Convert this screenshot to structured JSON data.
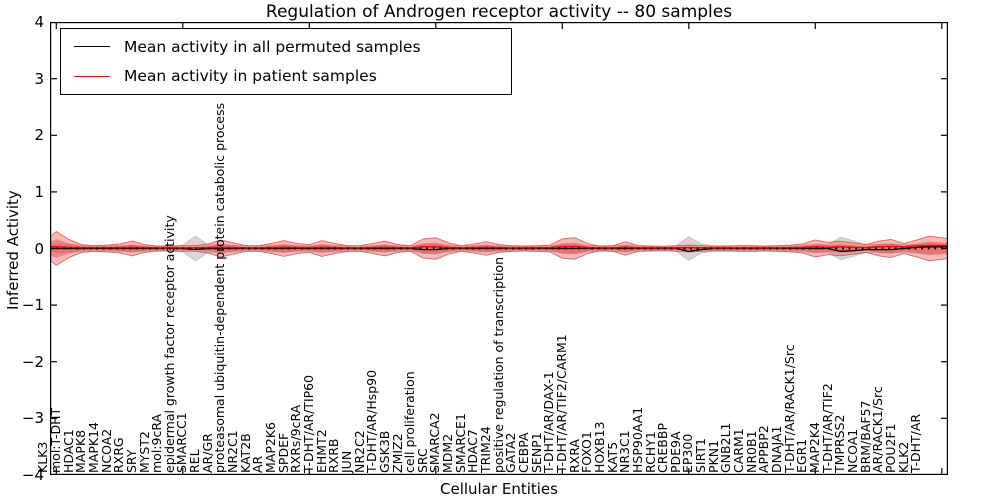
{
  "title": "Regulation of Androgen receptor activity -- 80 samples",
  "legend": {
    "entries": [
      {
        "label": "Mean activity in all permuted samples",
        "color": "#000000"
      },
      {
        "label": "Mean activity in patient samples",
        "color": "#ff0000"
      }
    ]
  },
  "chart_data": {
    "type": "area",
    "subtype": "per-entity spread band (violin strip) around mean activity",
    "title": "Regulation of Androgen receptor activity -- 80 samples",
    "xlabel": "Cellular Entities",
    "ylabel": "Inferred Activity",
    "ylim": [
      -4,
      4
    ],
    "ytick_labels": [
      "4",
      "3",
      "2",
      "1",
      "0",
      "−1",
      "−2",
      "−3",
      "−4"
    ],
    "ytick_values": [
      4,
      3,
      2,
      1,
      0,
      -1,
      -2,
      -3,
      -4
    ],
    "xtick_indices": [
      0,
      10,
      20,
      30,
      40,
      50,
      60,
      70
    ],
    "grid": false,
    "legend_position": "upper left",
    "zero_line": {
      "style": "dotted",
      "color": "#000000",
      "y": 0
    },
    "categories": [
      "KLK3",
      "mol:T-DHT",
      "HDAC1",
      "MAPK8",
      "MAPK14",
      "NCOA2",
      "RXRG",
      "SRY",
      "MYST2",
      "mol:9cRA",
      "epidermal growth factor receptor activity",
      "SMARCC1",
      "REL",
      "AR/GR",
      "proteasomal ubiquitin-dependent protein catabolic process",
      "NR2C1",
      "KAT2B",
      "AR",
      "MAP2K6",
      "SPDEF",
      "RXRs/9cRA",
      "T-DHT/AR/TIP60",
      "EHMT2",
      "RXRB",
      "JUN",
      "NR2C2",
      "T-DHT/AR/Hsp90",
      "GSK3B",
      "ZMIZ2",
      "cell proliferation",
      "SRC",
      "SMARCA2",
      "MDM2",
      "SMARCE1",
      "HDAC7",
      "TRIM24",
      "positive regulation of transcription",
      "GATA2",
      "CEBPA",
      "SENP1",
      "T-DHT/AR/DAX-1",
      "T-DHT/AR/TIF2/CARM1",
      "RXRA",
      "FOXO1",
      "HOXB13",
      "KAT5",
      "NR3C1",
      "HSP90AA1",
      "RCHY1",
      "CREBBP",
      "PDE9A",
      "EP300",
      "SIRT1",
      "PKN1",
      "GNB2L1",
      "CARM1",
      "NR0B1",
      "APPBP2",
      "DNAJA1",
      "T-DHT/AR/RACK1/Src",
      "EGR1",
      "MAP2K4",
      "T-DHT/AR/TIF2",
      "TMPRSS2",
      "NCOA1",
      "BRM/BAF57",
      "AR/RACK1/Src",
      "POU2F1",
      "KLK2",
      "T-DHT/AR"
    ],
    "series": [
      {
        "name": "Mean activity in all permuted samples",
        "line_color": "#000000",
        "fill_color": "#999999",
        "mean": [
          0,
          0,
          0,
          0,
          0,
          0,
          0,
          0,
          0,
          0,
          0,
          -0.02,
          0,
          0,
          0,
          0,
          0,
          0,
          0,
          0,
          0,
          0,
          0,
          0,
          0,
          0,
          0,
          0,
          0,
          -0.02,
          -0.02,
          0,
          0,
          0,
          0,
          0,
          0,
          0,
          0,
          0,
          0,
          0,
          0,
          0,
          0,
          0,
          0,
          0,
          0,
          0,
          -0.05,
          -0.02,
          0,
          0,
          0,
          0,
          0,
          0,
          0,
          0,
          0,
          0,
          -0.05,
          -0.04,
          -0.02,
          -0.02,
          -0.02,
          0,
          0.02,
          0.03
        ],
        "spread_half": [
          0.07,
          0.07,
          0.06,
          0.05,
          0.06,
          0.06,
          0.06,
          0.05,
          0.05,
          0.05,
          0.06,
          0.22,
          0.07,
          0.07,
          0.06,
          0.05,
          0.05,
          0.06,
          0.06,
          0.05,
          0.05,
          0.06,
          0.06,
          0.05,
          0.05,
          0.05,
          0.06,
          0.05,
          0.05,
          0.07,
          0.07,
          0.06,
          0.05,
          0.05,
          0.06,
          0.05,
          0.05,
          0.05,
          0.05,
          0.05,
          0.07,
          0.07,
          0.06,
          0.05,
          0.05,
          0.06,
          0.05,
          0.05,
          0.04,
          0.05,
          0.21,
          0.08,
          0.05,
          0.05,
          0.05,
          0.05,
          0.05,
          0.05,
          0.05,
          0.06,
          0.07,
          0.07,
          0.2,
          0.14,
          0.07,
          0.08,
          0.08,
          0.07,
          0.08,
          0.09
        ]
      },
      {
        "name": "Mean activity in patient samples",
        "line_color": "#ff0000",
        "fill_color": "#e85050",
        "mean": [
          0.03,
          0.02,
          0.015,
          0.015,
          0.015,
          0.015,
          0.02,
          0.015,
          0.01,
          0.01,
          0.01,
          0.01,
          0.015,
          0.02,
          0.015,
          0.01,
          0.01,
          0.015,
          0.02,
          0.015,
          0.015,
          0.02,
          0.015,
          0.01,
          0.01,
          0.015,
          0.02,
          0.015,
          0.01,
          0.03,
          0.03,
          0.015,
          0.01,
          0.015,
          0.02,
          0.015,
          0.01,
          0.01,
          0.01,
          0.015,
          0.03,
          0.035,
          0.015,
          0.01,
          0.01,
          0.02,
          0.01,
          0.01,
          0.01,
          0.01,
          0.015,
          0.01,
          0.01,
          0.01,
          0.01,
          0.01,
          0.01,
          0.01,
          0.015,
          0.015,
          0.03,
          0.02,
          0.03,
          0.02,
          0.015,
          0.03,
          0.035,
          0.03,
          0.045,
          0.05
        ],
        "spread_half": [
          0.3,
          0.16,
          0.07,
          0.05,
          0.06,
          0.08,
          0.13,
          0.07,
          0.04,
          0.04,
          0.05,
          0.05,
          0.08,
          0.15,
          0.1,
          0.05,
          0.05,
          0.09,
          0.14,
          0.09,
          0.07,
          0.14,
          0.09,
          0.05,
          0.05,
          0.09,
          0.13,
          0.07,
          0.05,
          0.17,
          0.19,
          0.1,
          0.05,
          0.08,
          0.12,
          0.07,
          0.05,
          0.04,
          0.05,
          0.06,
          0.17,
          0.19,
          0.09,
          0.04,
          0.05,
          0.12,
          0.05,
          0.04,
          0.04,
          0.05,
          0.06,
          0.05,
          0.04,
          0.04,
          0.05,
          0.05,
          0.04,
          0.05,
          0.06,
          0.08,
          0.15,
          0.11,
          0.13,
          0.1,
          0.07,
          0.13,
          0.16,
          0.09,
          0.15,
          0.22
        ]
      }
    ]
  }
}
